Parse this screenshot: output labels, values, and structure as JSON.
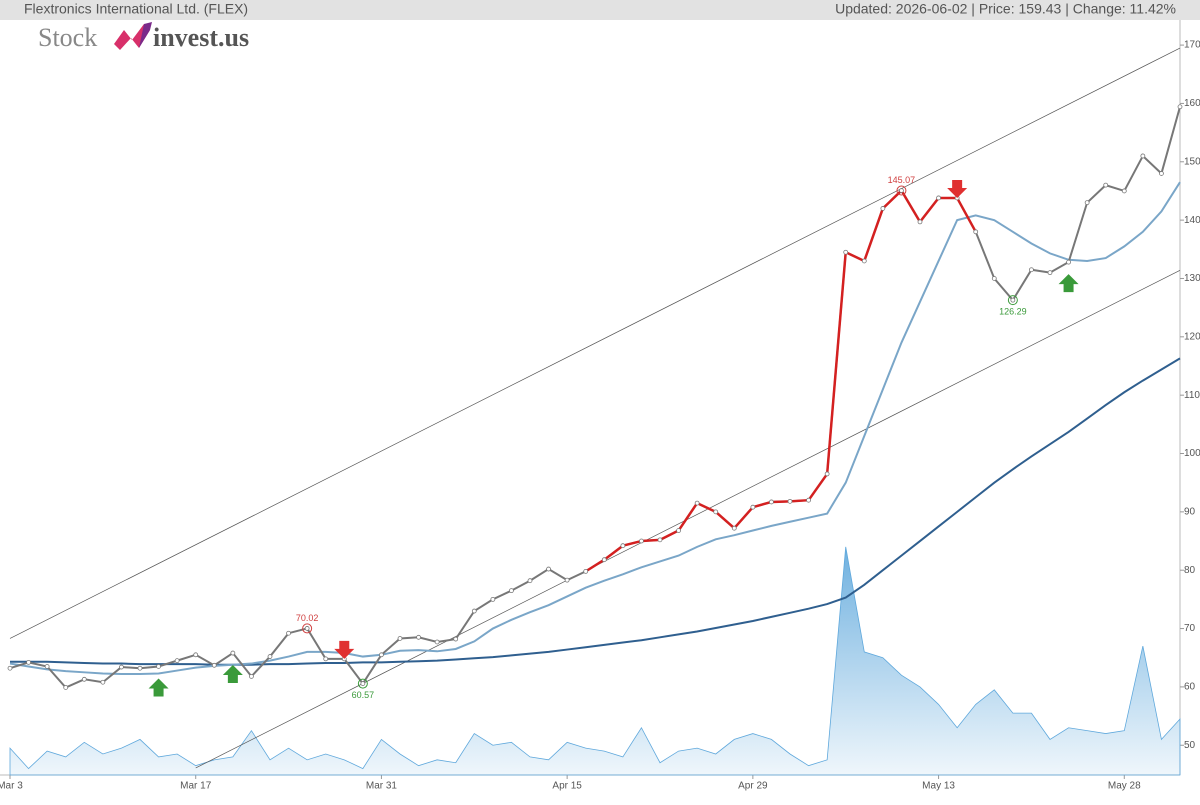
{
  "header": {
    "title": "Flextronics International Ltd. (FLEX)",
    "status": "Updated: 2026-06-02 | Price: 159.43 | Change: 11.42%"
  },
  "logo": {
    "left": "Stock",
    "right": "invest.us"
  },
  "chart_data": {
    "type": "line",
    "categories": [
      "Mar 3",
      null,
      null,
      null,
      null,
      null,
      null,
      null,
      null,
      null,
      "Mar 17",
      null,
      null,
      null,
      null,
      null,
      null,
      null,
      null,
      null,
      "Mar 31",
      null,
      null,
      null,
      null,
      null,
      null,
      null,
      null,
      null,
      "Apr 15",
      null,
      null,
      null,
      null,
      null,
      null,
      null,
      null,
      null,
      "Apr 29",
      null,
      null,
      null,
      null,
      null,
      null,
      null,
      null,
      null,
      "May 13",
      null,
      null,
      null,
      null,
      null,
      null,
      null,
      null,
      null,
      "May 28",
      null,
      null,
      null
    ],
    "series": [
      {
        "color": "#777777",
        "highlight_color": "#d42020",
        "highlight_range": [
          31,
          52
        ],
        "values": [
          63.2,
          64.2,
          63.5,
          59.9,
          61.3,
          60.8,
          63.4,
          63.2,
          63.5,
          64.5,
          65.5,
          63.7,
          65.8,
          61.8,
          65.2,
          69.2,
          70.02,
          64.8,
          64.8,
          60.57,
          65.5,
          68.3,
          68.5,
          67.7,
          68.2,
          73,
          75,
          76.5,
          78.2,
          80.2,
          78.3,
          79.8,
          81.8,
          84.2,
          85,
          85.2,
          86.8,
          91.5,
          90,
          87.2,
          90.8,
          91.7,
          91.8,
          92,
          96.5,
          134.5,
          133,
          142,
          145.07,
          139.7,
          143.8,
          143.8,
          138,
          130,
          126.29,
          131.5,
          131,
          132.8,
          143,
          146,
          145,
          151,
          148,
          159.43
        ]
      },
      {
        "color": "#7aa6c8",
        "values": [
          64,
          63.5,
          63,
          62.7,
          62.5,
          62.3,
          62.2,
          62.2,
          62.3,
          62.8,
          63.3,
          63.6,
          63.8,
          64,
          64.5,
          65.2,
          66,
          66,
          65.8,
          65.2,
          65.5,
          66.2,
          66.3,
          66.1,
          66.5,
          67.8,
          70,
          71.5,
          72.8,
          74,
          75.5,
          77,
          78.2,
          79.3,
          80.5,
          81.5,
          82.5,
          84,
          85.3,
          86,
          86.8,
          87.6,
          88.3,
          89,
          89.7,
          95,
          103,
          111,
          119,
          126,
          133,
          140,
          140.8,
          140,
          138,
          136,
          134.3,
          133.2,
          133,
          133.5,
          135.5,
          138,
          141.5,
          146.5
        ]
      },
      {
        "color": "#2f5f8f",
        "values": [
          64.3,
          64.3,
          64.3,
          64.2,
          64.1,
          64,
          64,
          63.9,
          63.9,
          63.9,
          63.9,
          63.8,
          63.8,
          63.8,
          63.9,
          63.9,
          64,
          64.1,
          64.1,
          64.2,
          64.2,
          64.3,
          64.4,
          64.5,
          64.7,
          64.9,
          65.1,
          65.4,
          65.7,
          66,
          66.4,
          66.8,
          67.2,
          67.6,
          68,
          68.5,
          69,
          69.5,
          70.1,
          70.7,
          71.3,
          72,
          72.7,
          73.4,
          74.2,
          75.3,
          77.5,
          80,
          82.5,
          85,
          87.5,
          90,
          92.5,
          95,
          97.3,
          99.5,
          101.6,
          103.7,
          106,
          108.3,
          110.5,
          112.5,
          114.4,
          116.3
        ]
      }
    ],
    "volume": {
      "color": "#5fa8dc",
      "values": [
        49.5,
        46,
        49,
        48,
        50.5,
        48.5,
        49.5,
        51,
        48,
        48.5,
        46.5,
        47.5,
        48,
        52.5,
        47.5,
        49.5,
        47.5,
        48.5,
        47.5,
        46,
        51,
        48.5,
        46.5,
        47.5,
        47,
        52,
        50,
        50.5,
        48,
        47.5,
        50.5,
        49.5,
        49,
        48,
        53,
        47,
        49,
        49.5,
        48.5,
        51,
        52,
        51,
        48.5,
        46.5,
        47.5,
        84,
        66,
        65,
        62,
        60,
        57,
        53,
        57,
        59.5,
        55.5,
        55.5,
        51,
        53,
        52.5,
        52,
        52.5,
        67,
        51,
        54.5
      ]
    },
    "trend_lines": [
      {
        "x": [
          0,
          63
        ],
        "values": [
          68.3,
          169.5
        ]
      },
      {
        "x": [
          10,
          63
        ],
        "values": [
          46.1,
          131.4
        ]
      }
    ],
    "annotations": [
      {
        "index": 48,
        "label": 145.07,
        "color": "#d04040"
      },
      {
        "index": 54,
        "label": 126.29,
        "color": "#3a9a3a"
      },
      {
        "index": 16,
        "label": 70.02,
        "color": "#d04040"
      },
      {
        "index": 19,
        "label": 60.57,
        "color": "#3a9a3a"
      }
    ],
    "buy_signals": [
      8,
      12,
      57
    ],
    "sell_signals": [
      18,
      51
    ],
    "ylim": [
      44.9,
      174.3
    ],
    "yticks": [
      50,
      60,
      70,
      80,
      90,
      100,
      110,
      120,
      130,
      140,
      150,
      160,
      170
    ]
  }
}
